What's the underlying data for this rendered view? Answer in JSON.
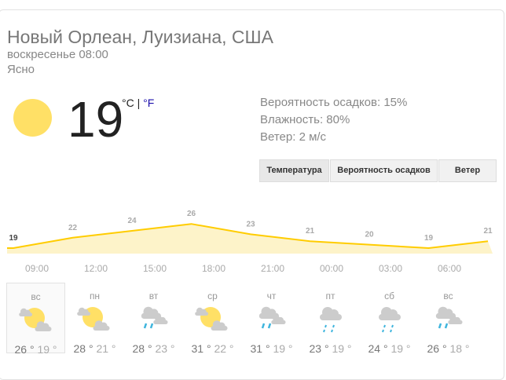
{
  "location": "Новый Орлеан, Луизиана, США",
  "datetime": "воскресенье 08:00",
  "condition": "Ясно",
  "current": {
    "temperature": "19",
    "unit_c": "°C",
    "separator": "|",
    "unit_f": "°F",
    "icon": "sun-icon"
  },
  "details": [
    "Вероятность осадков: 15%",
    "Влажность: 80%",
    "Ветер: 2 м/с"
  ],
  "tabs": [
    "Температура",
    "Вероятность осадков",
    "Ветер"
  ],
  "colors": {
    "line": "#ffcc00",
    "fill": "#fdf3c9",
    "sun": "#ffe066",
    "rain": "#3fb5dd"
  },
  "chart_data": {
    "type": "area",
    "values": [
      19,
      22,
      24,
      26,
      23,
      21,
      20,
      19,
      21
    ],
    "time_labels": [
      "09:00",
      "12:00",
      "15:00",
      "18:00",
      "21:00",
      "00:00",
      "03:00",
      "06:00"
    ]
  },
  "forecast": [
    {
      "day": "вс",
      "icon": "partly-cloudy-icon",
      "high": "26 °",
      "low": "19 °"
    },
    {
      "day": "пн",
      "icon": "partly-cloudy-icon",
      "high": "28 °",
      "low": "21 °"
    },
    {
      "day": "вт",
      "icon": "rain-clouds-icon",
      "high": "28 °",
      "low": "23 °"
    },
    {
      "day": "ср",
      "icon": "partly-cloudy-icon",
      "high": "31 °",
      "low": "22 °"
    },
    {
      "day": "чт",
      "icon": "rain-clouds-icon",
      "high": "31 °",
      "low": "19 °"
    },
    {
      "day": "пт",
      "icon": "light-rain-icon",
      "high": "23 °",
      "low": "19 °"
    },
    {
      "day": "сб",
      "icon": "light-rain-icon",
      "high": "24 °",
      "low": "19 °"
    },
    {
      "day": "вс",
      "icon": "rain-clouds-icon",
      "high": "26 °",
      "low": "18 °"
    }
  ]
}
